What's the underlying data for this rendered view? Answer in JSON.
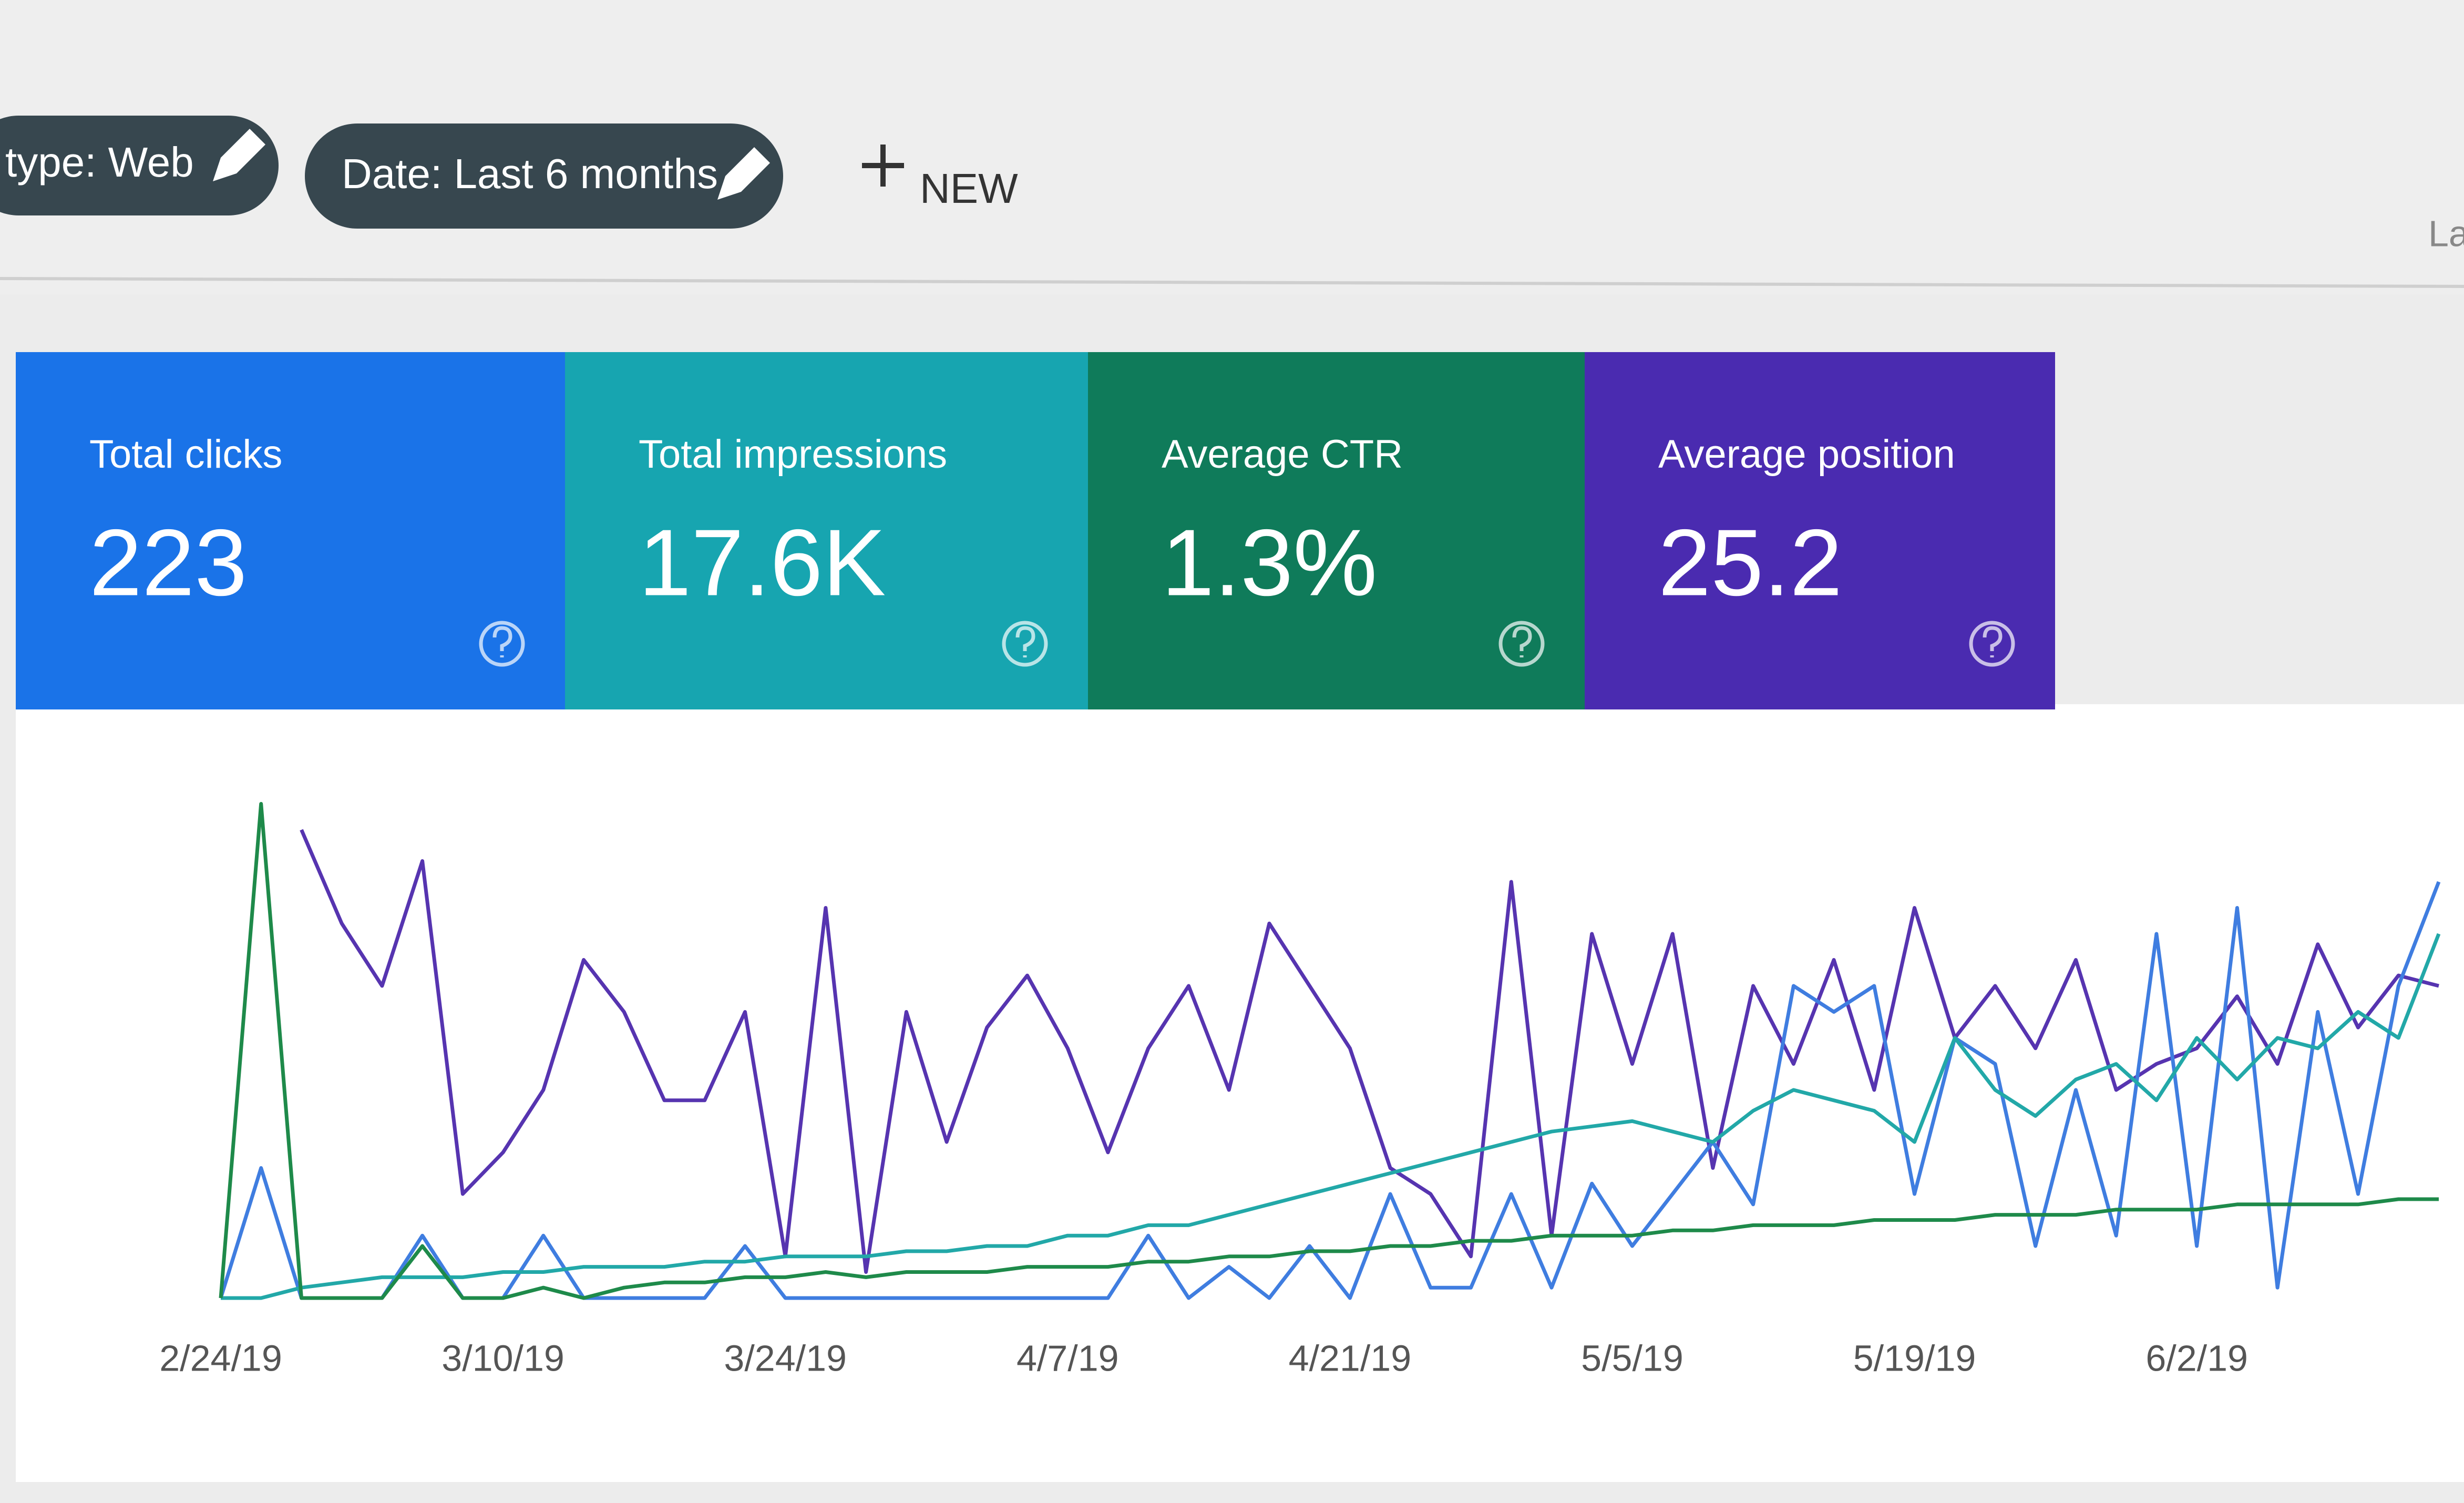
{
  "filters": [
    {
      "label": "type: Web"
    },
    {
      "label": "Date: Last 6 months"
    }
  ],
  "new_button": "NEW",
  "corner_text": "La",
  "metrics": [
    {
      "label": "Total clicks",
      "value": "223",
      "color": "#1a73e8"
    },
    {
      "label": "Total impressions",
      "value": "17.6K",
      "color": "#17a5b0"
    },
    {
      "label": "Average CTR",
      "value": "1.3%",
      "color": "#0f7b5a"
    },
    {
      "label": "Average position",
      "value": "25.2",
      "color": "#4a2bb0"
    }
  ],
  "chart_data": {
    "type": "line",
    "categories": [
      "2/24/19",
      null,
      null,
      null,
      null,
      null,
      null,
      "3/10/19",
      null,
      null,
      null,
      null,
      null,
      null,
      "3/24/19",
      null,
      null,
      null,
      null,
      null,
      null,
      "4/7/19",
      null,
      null,
      null,
      null,
      null,
      null,
      "4/21/19",
      null,
      null,
      null,
      null,
      null,
      null,
      "5/5/19",
      null,
      null,
      null,
      null,
      null,
      null,
      "5/19/19",
      null,
      null,
      null,
      null,
      null,
      null,
      "6/2/19",
      null,
      null,
      null,
      null,
      null,
      null
    ],
    "ylim": [
      0,
      100
    ],
    "series": [
      {
        "color": "#5634b0",
        "values": [
          null,
          null,
          90,
          72,
          60,
          84,
          20,
          28,
          40,
          65,
          55,
          38,
          38,
          55,
          8,
          75,
          5,
          55,
          30,
          52,
          62,
          48,
          28,
          48,
          60,
          40,
          72,
          60,
          48,
          25,
          20,
          8,
          80,
          12,
          70,
          45,
          70,
          25,
          60,
          45,
          65,
          40,
          75,
          50,
          60,
          48,
          65,
          40,
          45,
          48,
          58,
          45,
          68,
          52,
          62,
          60
        ]
      },
      {
        "color": "#3f7de0",
        "values": [
          0,
          25,
          0,
          0,
          0,
          12,
          0,
          0,
          12,
          0,
          0,
          0,
          0,
          10,
          0,
          0,
          0,
          0,
          0,
          0,
          0,
          0,
          0,
          12,
          0,
          6,
          0,
          10,
          0,
          20,
          2,
          2,
          20,
          2,
          22,
          10,
          20,
          30,
          18,
          60,
          55,
          60,
          20,
          50,
          45,
          10,
          40,
          12,
          70,
          10,
          75,
          2,
          55,
          20,
          60,
          80
        ]
      },
      {
        "color": "#22a8a8",
        "values": [
          0,
          0,
          2,
          3,
          4,
          4,
          4,
          5,
          5,
          6,
          6,
          6,
          7,
          7,
          8,
          8,
          8,
          9,
          9,
          10,
          10,
          12,
          12,
          14,
          14,
          16,
          18,
          20,
          22,
          24,
          26,
          28,
          30,
          32,
          33,
          34,
          32,
          30,
          36,
          40,
          38,
          36,
          30,
          50,
          40,
          35,
          42,
          45,
          38,
          50,
          42,
          50,
          48,
          55,
          50,
          70
        ]
      },
      {
        "color": "#1e8a4a",
        "values": [
          0,
          95,
          0,
          0,
          0,
          10,
          0,
          0,
          2,
          0,
          2,
          3,
          3,
          4,
          4,
          5,
          4,
          5,
          5,
          5,
          6,
          6,
          6,
          7,
          7,
          8,
          8,
          9,
          9,
          10,
          10,
          11,
          11,
          12,
          12,
          12,
          13,
          13,
          14,
          14,
          14,
          15,
          15,
          15,
          16,
          16,
          16,
          17,
          17,
          17,
          18,
          18,
          18,
          18,
          19,
          19
        ]
      }
    ]
  }
}
